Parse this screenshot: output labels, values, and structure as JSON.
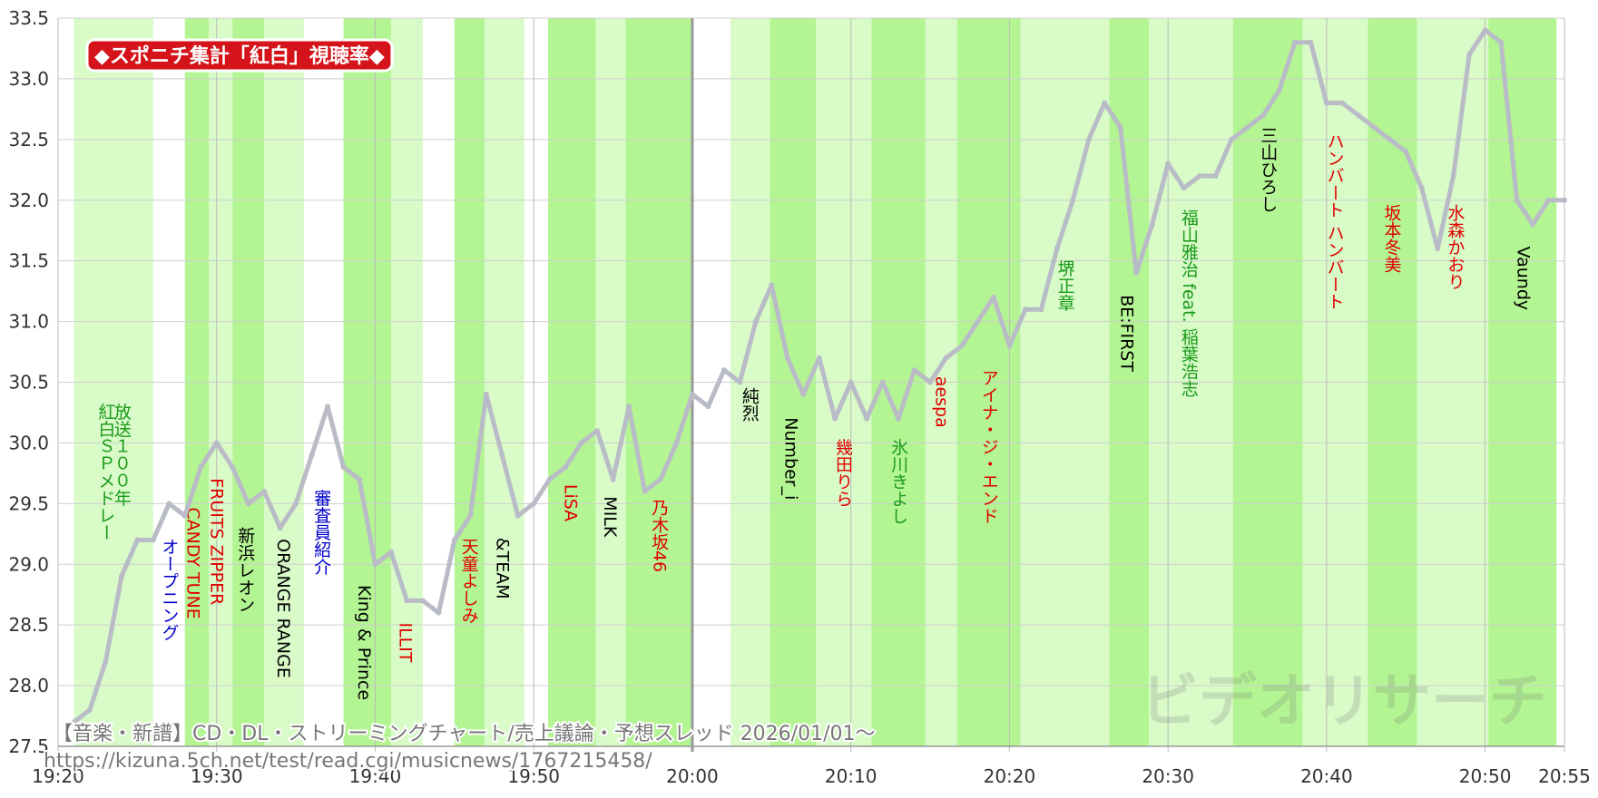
{
  "chart_data": {
    "type": "line",
    "title": "◆スポニチ集計「紅白」視聴率◆",
    "watermark": "ビデオリサーチ",
    "footnotes": [
      "【音楽・新譜】CD・DL・ストリーミングチャート/売上議論・予想スレッド 2026/01/01〜",
      "https://kizuna.5ch.net/test/read.cgi/musicnews/1767215458/"
    ],
    "xlim": [
      0,
      95
    ],
    "xticks": [
      {
        "value": 0,
        "label": "19:20"
      },
      {
        "value": 10,
        "label": "19:30"
      },
      {
        "value": 20,
        "label": "19:40"
      },
      {
        "value": 30,
        "label": "19:50"
      },
      {
        "value": 40,
        "label": "20:00"
      },
      {
        "value": 50,
        "label": "20:10"
      },
      {
        "value": 60,
        "label": "20:20"
      },
      {
        "value": 70,
        "label": "20:30"
      },
      {
        "value": 80,
        "label": "20:40"
      },
      {
        "value": 90,
        "label": "20:50"
      },
      {
        "value": 95,
        "label": "20:55"
      }
    ],
    "ylim": [
      27.5,
      33.5
    ],
    "yticks": [
      27.5,
      {
        "value": 28,
        "label": "28.0"
      },
      28.5,
      {
        "value": 29,
        "label": "29.0"
      },
      29.5,
      {
        "value": 30,
        "label": "30.0"
      },
      30.5,
      {
        "value": 31,
        "label": "31.0"
      },
      31.5,
      {
        "value": 32,
        "label": "32.0"
      },
      32.5,
      {
        "value": 33,
        "label": "33.0"
      },
      33.5
    ],
    "grid": true,
    "series": [
      {
        "color": "#b9bcc6",
        "x": [
          1,
          2,
          3,
          4,
          5,
          6,
          7,
          8,
          9,
          10,
          11,
          12,
          13,
          14,
          15,
          16,
          17,
          18,
          19,
          20,
          21,
          22,
          23,
          24,
          25,
          26,
          27,
          28,
          29,
          30,
          31,
          32,
          33,
          34,
          35,
          36,
          37,
          38,
          39,
          40,
          41,
          42,
          43,
          44,
          45,
          46,
          47,
          48,
          49,
          50,
          51,
          52,
          53,
          54,
          55,
          56,
          57,
          58,
          59,
          60,
          61,
          62,
          63,
          64,
          65,
          66,
          67,
          68,
          69,
          70,
          71,
          72,
          73,
          74,
          75,
          76,
          77,
          78,
          79,
          80,
          81,
          82,
          83,
          84,
          85,
          86,
          87,
          88,
          89,
          90,
          91,
          92,
          93,
          94,
          95
        ],
        "values": [
          27.7,
          27.8,
          28.2,
          28.9,
          29.2,
          29.2,
          29.5,
          29.4,
          29.8,
          30.0,
          29.8,
          29.5,
          29.6,
          29.3,
          29.5,
          29.9,
          30.3,
          29.8,
          29.7,
          29.0,
          29.1,
          28.7,
          28.7,
          28.6,
          29.2,
          29.4,
          30.4,
          29.9,
          29.4,
          29.5,
          29.7,
          29.8,
          30.0,
          30.1,
          29.7,
          30.3,
          29.6,
          29.7,
          30.0,
          30.4,
          30.3,
          30.6,
          30.5,
          31.0,
          31.3,
          30.7,
          30.4,
          30.7,
          30.2,
          30.5,
          30.2,
          30.5,
          30.2,
          30.6,
          30.5,
          30.7,
          30.8,
          31.0,
          31.2,
          30.8,
          31.1,
          31.1,
          31.6,
          32.0,
          32.5,
          32.8,
          32.6,
          31.4,
          31.8,
          32.3,
          32.1,
          32.2,
          32.2,
          32.5,
          32.6,
          32.7,
          32.9,
          33.3,
          33.3,
          32.8,
          32.8,
          32.7,
          32.6,
          32.5,
          32.4,
          32.1,
          31.6,
          32.2,
          33.2,
          33.4,
          33.3,
          32.0,
          31.8,
          32.0,
          32.0
        ]
      }
    ],
    "bands": [
      {
        "start": 1.0,
        "end": 6.0,
        "color": "#d8fbc8"
      },
      {
        "start": 8.0,
        "end": 9.5,
        "color": "#b3f592"
      },
      {
        "start": 9.5,
        "end": 11.0,
        "color": "#d8fbc8"
      },
      {
        "start": 11.0,
        "end": 13.0,
        "color": "#b3f592"
      },
      {
        "start": 13.0,
        "end": 15.5,
        "color": "#d8fbc8"
      },
      {
        "start": 18.0,
        "end": 21.0,
        "color": "#b3f592"
      },
      {
        "start": 21.0,
        "end": 23.0,
        "color": "#d8fbc8"
      },
      {
        "start": 25.0,
        "end": 26.9,
        "color": "#b3f592"
      },
      {
        "start": 26.9,
        "end": 29.4,
        "color": "#d8fbc8"
      },
      {
        "start": 30.9,
        "end": 33.9,
        "color": "#b3f592"
      },
      {
        "start": 33.9,
        "end": 35.8,
        "color": "#d8fbc8"
      },
      {
        "start": 35.8,
        "end": 40.0,
        "color": "#b3f592"
      },
      {
        "start": 42.4,
        "end": 44.9,
        "color": "#d8fbc8"
      },
      {
        "start": 44.9,
        "end": 47.8,
        "color": "#b3f592"
      },
      {
        "start": 47.8,
        "end": 51.3,
        "color": "#d8fbc8"
      },
      {
        "start": 51.3,
        "end": 54.7,
        "color": "#b3f592"
      },
      {
        "start": 54.7,
        "end": 56.7,
        "color": "#d8fbc8"
      },
      {
        "start": 56.7,
        "end": 60.7,
        "color": "#b3f592"
      },
      {
        "start": 60.7,
        "end": 66.3,
        "color": "#d8fbc8"
      },
      {
        "start": 66.3,
        "end": 68.8,
        "color": "#b3f592"
      },
      {
        "start": 68.8,
        "end": 74.1,
        "color": "#d8fbc8"
      },
      {
        "start": 74.1,
        "end": 78.5,
        "color": "#b3f592"
      },
      {
        "start": 78.5,
        "end": 82.6,
        "color": "#d8fbc8"
      },
      {
        "start": 82.6,
        "end": 85.7,
        "color": "#b3f592"
      },
      {
        "start": 85.7,
        "end": 90.2,
        "color": "#d8fbc8"
      },
      {
        "start": 90.2,
        "end": 94.5,
        "color": "#b3f592"
      }
    ],
    "annotations": [
      {
        "text": "放送１００年",
        "x": 4.0,
        "y": 30.33,
        "color": "#1a9a1a"
      },
      {
        "text": "紅白ＳＰメドレー",
        "x": 3.0,
        "y": 30.33,
        "color": "#1a9a1a"
      },
      {
        "text": "オープニング",
        "x": 7.0,
        "y": 29.22,
        "color": "#0000cc"
      },
      {
        "text": "CANDY TUNE",
        "x": 8.5,
        "y": 29.47,
        "color": "#e00000"
      },
      {
        "text": "FRUITS ZIPPER",
        "x": 10.0,
        "y": 29.71,
        "color": "#e00000"
      },
      {
        "text": "新浜レオン",
        "x": 11.8,
        "y": 29.31,
        "color": "#000000"
      },
      {
        "text": "ORANGE RANGE",
        "x": 14.2,
        "y": 29.21,
        "color": "#000000"
      },
      {
        "text": "審査員紹介",
        "x": 16.6,
        "y": 29.62,
        "color": "#0000cc"
      },
      {
        "text": "King & Prince",
        "x": 19.3,
        "y": 28.83,
        "color": "#000000"
      },
      {
        "text": "ILLIT",
        "x": 21.9,
        "y": 28.52,
        "color": "#e00000"
      },
      {
        "text": "天童よしみ",
        "x": 25.9,
        "y": 29.22,
        "color": "#e00000"
      },
      {
        "text": "&TEAM",
        "x": 28.0,
        "y": 29.22,
        "color": "#000000"
      },
      {
        "text": "LiSA",
        "x": 32.3,
        "y": 29.66,
        "color": "#e00000"
      },
      {
        "text": "MILK",
        "x": 34.8,
        "y": 29.56,
        "color": "#000000"
      },
      {
        "text": "乃木坂46",
        "x": 37.9,
        "y": 29.54,
        "color": "#e00000"
      },
      {
        "text": "純烈",
        "x": 43.6,
        "y": 30.46,
        "color": "#000000"
      },
      {
        "text": "Number_i",
        "x": 46.2,
        "y": 30.21,
        "color": "#000000"
      },
      {
        "text": "幾田りら",
        "x": 49.5,
        "y": 30.04,
        "color": "#e00000"
      },
      {
        "text": "氷川きよし",
        "x": 53.0,
        "y": 30.04,
        "color": "#1a9a1a"
      },
      {
        "text": "aespa",
        "x": 55.7,
        "y": 30.55,
        "color": "#e00000"
      },
      {
        "text": "アイナ・ジ・エンド",
        "x": 58.7,
        "y": 30.61,
        "color": "#e00000"
      },
      {
        "text": "堺正章",
        "x": 63.5,
        "y": 31.51,
        "color": "#1a9a1a"
      },
      {
        "text": "BE:FIRST",
        "x": 67.4,
        "y": 31.22,
        "color": "#000000"
      },
      {
        "text": "福山雅治 feat. 稲葉浩志",
        "x": 71.3,
        "y": 31.93,
        "color": "#1a9a1a"
      },
      {
        "text": "三山ひろし",
        "x": 76.3,
        "y": 32.61,
        "color": "#000000"
      },
      {
        "text": "ハンバート ハンバート",
        "x": 80.5,
        "y": 32.56,
        "color": "#e00000"
      },
      {
        "text": "坂本冬美",
        "x": 84.1,
        "y": 31.97,
        "color": "#e00000"
      },
      {
        "text": "水森かおり",
        "x": 88.1,
        "y": 31.97,
        "color": "#e00000"
      },
      {
        "text": "Vaundy",
        "x": 92.4,
        "y": 31.62,
        "color": "#000000"
      }
    ]
  }
}
